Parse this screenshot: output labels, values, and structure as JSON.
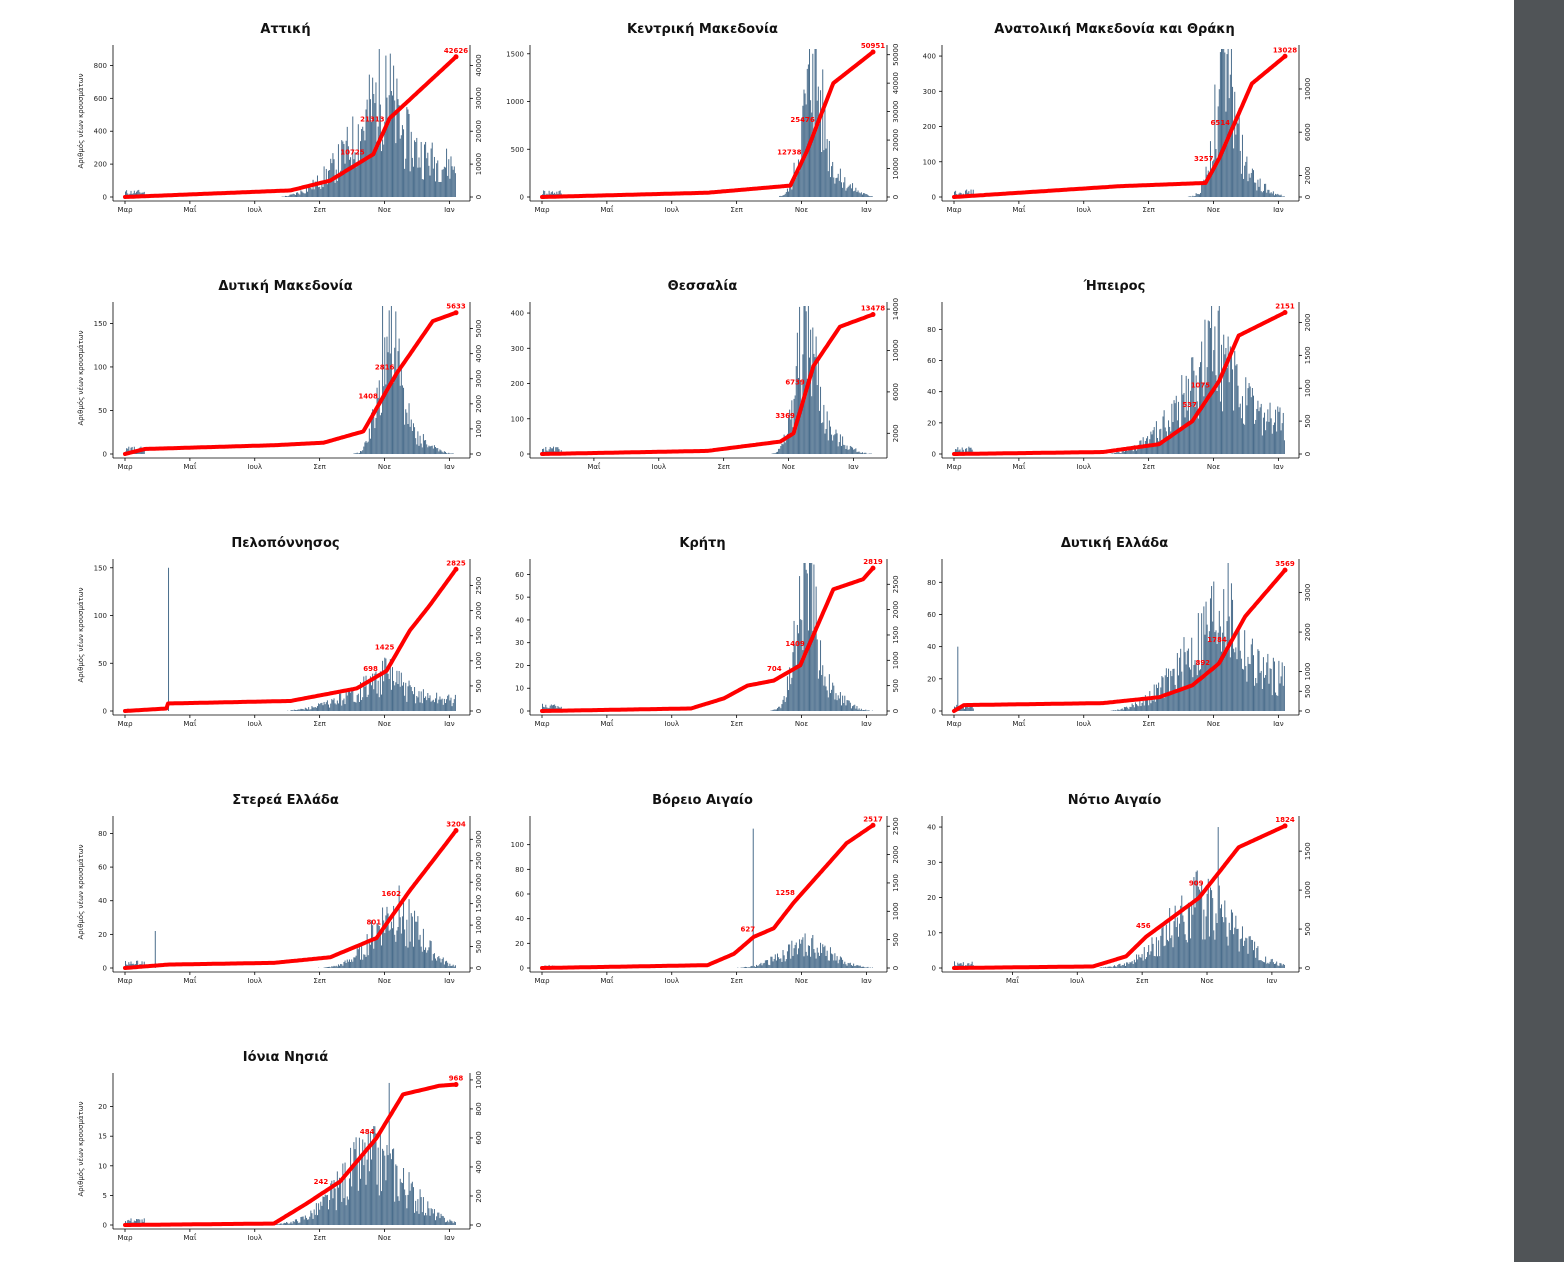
{
  "colors": {
    "bars": "#4a6d8c",
    "line": "#ff0000",
    "axis": "#000000",
    "sidebar": "#505457"
  },
  "ylabel": "Αριθμός νέων κρουσμάτων",
  "chart_data": [
    {
      "type": "bar+line",
      "title": "Αττική",
      "months": [
        "Μαρ",
        "Μαΐ",
        "Ιουλ",
        "Σεπ",
        "Νοε",
        "Ιαν"
      ],
      "month_pos": [
        0,
        0.2,
        0.4,
        0.6,
        0.8,
        1.0
      ],
      "yticks_left": [
        "0",
        "200",
        "400",
        "600",
        "800"
      ],
      "ylim_left": [
        0,
        900
      ],
      "yticks_right": [
        "0",
        "10000",
        "20000",
        "30000",
        "40000"
      ],
      "ylim_right": [
        0,
        45000
      ],
      "bar_max": 860,
      "peak_pos": 0.79,
      "shape": "fall",
      "spike": null,
      "cum_breaks": [
        [
          0,
          0
        ],
        [
          0.5,
          2000
        ],
        [
          0.62,
          5000
        ],
        [
          0.75,
          13000
        ],
        [
          0.8,
          24000
        ],
        [
          1,
          42626
        ]
      ],
      "labels": [
        {
          "text": "10725",
          "pos": 0.73
        },
        {
          "text": "21313",
          "pos": 0.79
        },
        {
          "text": "42626",
          "pos": 1
        }
      ],
      "show_ylabel": true
    },
    {
      "type": "bar+line",
      "title": "Κεντρική Μακεδονία",
      "months": [
        "Μαρ",
        "Μαΐ",
        "Ιουλ",
        "Σεπ",
        "Νοε",
        "Ιαν"
      ],
      "month_pos": [
        0,
        0.2,
        0.4,
        0.6,
        0.8,
        1.0
      ],
      "yticks_left": [
        "0",
        "500",
        "1000",
        "1500"
      ],
      "ylim_left": [
        0,
        1550
      ],
      "yticks_right": [
        "0",
        "10000",
        "20000",
        "30000",
        "40000",
        "50000"
      ],
      "ylim_right": [
        0,
        52000
      ],
      "bar_max": 1500,
      "peak_pos": 0.82,
      "shape": "peak",
      "spike": null,
      "cum_breaks": [
        [
          0,
          0
        ],
        [
          0.5,
          1500
        ],
        [
          0.75,
          4000
        ],
        [
          0.8,
          16000
        ],
        [
          0.88,
          40000
        ],
        [
          1,
          50951
        ]
      ],
      "labels": [
        {
          "text": "12738",
          "pos": 0.79
        },
        {
          "text": "25476",
          "pos": 0.83
        },
        {
          "text": "50951",
          "pos": 1
        }
      ],
      "show_ylabel": false
    },
    {
      "type": "bar+line",
      "title": "Ανατολική Μακεδονία και Θράκη",
      "months": [
        "Μαρ",
        "Μαΐ",
        "Ιουλ",
        "Σεπ",
        "Νοε",
        "Ιαν"
      ],
      "month_pos": [
        0,
        0.2,
        0.4,
        0.6,
        0.8,
        1.0
      ],
      "yticks_left": [
        "0",
        "100",
        "200",
        "300",
        "400"
      ],
      "ylim_left": [
        0,
        420
      ],
      "yticks_right": [
        "0",
        "2000",
        "6000",
        "10000"
      ],
      "ylim_right": [
        0,
        13700
      ],
      "bar_max": 410,
      "peak_pos": 0.82,
      "shape": "peak",
      "spike": null,
      "cum_breaks": [
        [
          0,
          0
        ],
        [
          0.35,
          700
        ],
        [
          0.5,
          1000
        ],
        [
          0.76,
          1300
        ],
        [
          0.8,
          3500
        ],
        [
          0.9,
          10500
        ],
        [
          1,
          13028
        ]
      ],
      "labels": [
        {
          "text": "3257",
          "pos": 0.79
        },
        {
          "text": "6514",
          "pos": 0.84
        },
        {
          "text": "13028",
          "pos": 1
        }
      ],
      "show_ylabel": false
    },
    {
      "type": "bar+line",
      "title": "Δυτική Μακεδονία",
      "months": [
        "Μαρ",
        "Μαΐ",
        "Ιουλ",
        "Σεπ",
        "Νοε",
        "Ιαν"
      ],
      "month_pos": [
        0,
        0.2,
        0.4,
        0.6,
        0.8,
        1.0
      ],
      "yticks_left": [
        "0",
        "50",
        "100",
        "150"
      ],
      "ylim_left": [
        0,
        170
      ],
      "yticks_right": [
        "0",
        "1000",
        "2000",
        "3000",
        "4000",
        "5000"
      ],
      "ylim_right": [
        0,
        5900
      ],
      "bar_max": 165,
      "peak_pos": 0.8,
      "shape": "peak",
      "spike": null,
      "cum_breaks": [
        [
          0,
          0
        ],
        [
          0.06,
          200
        ],
        [
          0.45,
          350
        ],
        [
          0.6,
          450
        ],
        [
          0.72,
          900
        ],
        [
          0.82,
          3200
        ],
        [
          0.93,
          5300
        ],
        [
          1,
          5633
        ]
      ],
      "labels": [
        {
          "text": "1408",
          "pos": 0.77
        },
        {
          "text": "2816",
          "pos": 0.82
        },
        {
          "text": "5633",
          "pos": 1
        }
      ],
      "show_ylabel": true
    },
    {
      "type": "bar+line",
      "title": "Θεσσαλία",
      "months": [
        "Μαΐ",
        "Ιουλ",
        "Σεπ",
        "Νοε",
        "Ιαν"
      ],
      "month_pos": [
        0.16,
        0.36,
        0.56,
        0.76,
        0.96
      ],
      "yticks_left": [
        "0",
        "100",
        "200",
        "300",
        "400"
      ],
      "ylim_left": [
        0,
        420
      ],
      "yticks_right": [
        "2000",
        "6000",
        "10000",
        "14000"
      ],
      "ylim_right": [
        0,
        14300
      ],
      "bar_max": 405,
      "peak_pos": 0.8,
      "shape": "peak",
      "spike": null,
      "cum_breaks": [
        [
          0,
          0
        ],
        [
          0.5,
          300
        ],
        [
          0.72,
          1200
        ],
        [
          0.76,
          2000
        ],
        [
          0.82,
          8500
        ],
        [
          0.9,
          12300
        ],
        [
          1,
          13478
        ]
      ],
      "labels": [
        {
          "text": "3369",
          "pos": 0.77
        },
        {
          "text": "6739",
          "pos": 0.8
        },
        {
          "text": "13478",
          "pos": 1
        }
      ],
      "show_ylabel": false
    },
    {
      "type": "bar+line",
      "title": "Ήπειρος",
      "months": [
        "Μαρ",
        "Μαΐ",
        "Ιουλ",
        "Σεπ",
        "Νοε",
        "Ιαν"
      ],
      "month_pos": [
        0,
        0.2,
        0.4,
        0.6,
        0.8,
        1.0
      ],
      "yticks_left": [
        "0",
        "20",
        "40",
        "60",
        "80"
      ],
      "ylim_left": [
        0,
        95
      ],
      "yticks_right": [
        "0",
        "500",
        "1000",
        "1500",
        "2000"
      ],
      "ylim_right": [
        0,
        2250
      ],
      "bar_max": 92,
      "peak_pos": 0.8,
      "shape": "fall",
      "spike": null,
      "cum_breaks": [
        [
          0,
          0
        ],
        [
          0.45,
          30
        ],
        [
          0.62,
          150
        ],
        [
          0.72,
          500
        ],
        [
          0.8,
          1100
        ],
        [
          0.86,
          1800
        ],
        [
          1,
          2151
        ]
      ],
      "labels": [
        {
          "text": "537",
          "pos": 0.74
        },
        {
          "text": "1075",
          "pos": 0.78
        },
        {
          "text": "2151",
          "pos": 1
        }
      ],
      "show_ylabel": false
    },
    {
      "type": "bar+line",
      "title": "Πελοπόννησος",
      "months": [
        "Μαρ",
        "Μαΐ",
        "Ιουλ",
        "Σεπ",
        "Νοε",
        "Ιαν"
      ],
      "month_pos": [
        0,
        0.2,
        0.4,
        0.6,
        0.8,
        1.0
      ],
      "yticks_left": [
        "0",
        "50",
        "100",
        "150"
      ],
      "ylim_left": [
        0,
        155
      ],
      "yticks_right": [
        "0",
        "500",
        "1000",
        "1500",
        "2000",
        "2500"
      ],
      "ylim_right": [
        0,
        2950
      ],
      "bar_max": 50,
      "peak_pos": 0.8,
      "shape": "fall",
      "spike": [
        0.13,
        150
      ],
      "cum_breaks": [
        [
          0,
          0
        ],
        [
          0.125,
          50
        ],
        [
          0.13,
          150
        ],
        [
          0.5,
          200
        ],
        [
          0.7,
          450
        ],
        [
          0.79,
          800
        ],
        [
          0.86,
          1600
        ],
        [
          0.92,
          2100
        ],
        [
          1,
          2825
        ]
      ],
      "labels": [
        {
          "text": "698",
          "pos": 0.77
        },
        {
          "text": "1425",
          "pos": 0.82
        },
        {
          "text": "2825",
          "pos": 1
        }
      ],
      "show_ylabel": true
    },
    {
      "type": "bar+line",
      "title": "Κρήτη",
      "months": [
        "Μαρ",
        "Μαΐ",
        "Ιουλ",
        "Σεπ",
        "Νοε",
        "Ιαν"
      ],
      "month_pos": [
        0,
        0.2,
        0.4,
        0.6,
        0.8,
        1.0
      ],
      "yticks_left": [
        "0",
        "10",
        "20",
        "30",
        "40",
        "50",
        "60"
      ],
      "ylim_left": [
        0,
        65
      ],
      "yticks_right": [
        "0",
        "500",
        "1000",
        "1500",
        "2000",
        "2500"
      ],
      "ylim_right": [
        0,
        2920
      ],
      "bar_max": 62,
      "peak_pos": 0.8,
      "shape": "peak",
      "spike": null,
      "cum_breaks": [
        [
          0,
          0
        ],
        [
          0.45,
          50
        ],
        [
          0.55,
          250
        ],
        [
          0.62,
          500
        ],
        [
          0.7,
          600
        ],
        [
          0.78,
          900
        ],
        [
          0.88,
          2400
        ],
        [
          0.97,
          2600
        ],
        [
          1,
          2819
        ]
      ],
      "labels": [
        {
          "text": "704",
          "pos": 0.73
        },
        {
          "text": "1409",
          "pos": 0.8
        },
        {
          "text": "2819",
          "pos": 1
        }
      ],
      "show_ylabel": false
    },
    {
      "type": "bar+line",
      "title": "Δυτική Ελλάδα",
      "months": [
        "Μαρ",
        "Μαΐ",
        "Ιουλ",
        "Σεπ",
        "Νοε",
        "Ιαν"
      ],
      "month_pos": [
        0,
        0.2,
        0.4,
        0.6,
        0.8,
        1.0
      ],
      "yticks_left": [
        "0",
        "20",
        "40",
        "60",
        "80"
      ],
      "ylim_left": [
        0,
        92
      ],
      "yticks_right": [
        "0",
        "500",
        "1000",
        "2000",
        "3000"
      ],
      "ylim_right": [
        0,
        3750
      ],
      "bar_max": 88,
      "peak_pos": 0.82,
      "shape": "fall",
      "spike": [
        0.01,
        40
      ],
      "cum_breaks": [
        [
          0,
          0
        ],
        [
          0.03,
          150
        ],
        [
          0.45,
          200
        ],
        [
          0.62,
          350
        ],
        [
          0.72,
          650
        ],
        [
          0.8,
          1200
        ],
        [
          0.88,
          2400
        ],
        [
          1,
          3569
        ]
      ],
      "labels": [
        {
          "text": "892",
          "pos": 0.78
        },
        {
          "text": "1784",
          "pos": 0.83
        },
        {
          "text": "3569",
          "pos": 1
        }
      ],
      "show_ylabel": false
    },
    {
      "type": "bar+line",
      "title": "Στερεά Ελλάδα",
      "months": [
        "Μαρ",
        "Μαΐ",
        "Ιουλ",
        "Σεπ",
        "Νοε",
        "Ιαν"
      ],
      "month_pos": [
        0,
        0.2,
        0.4,
        0.6,
        0.8,
        1.0
      ],
      "yticks_left": [
        "0",
        "20",
        "40",
        "60",
        "80"
      ],
      "ylim_left": [
        0,
        88
      ],
      "yticks_right": [
        "0",
        "500",
        "1000",
        "1500",
        "2000",
        "2500",
        "3000"
      ],
      "ylim_right": [
        0,
        3450
      ],
      "bar_max": 85,
      "peak_pos": 0.8,
      "shape": "flat",
      "spike": [
        0.09,
        22
      ],
      "cum_breaks": [
        [
          0,
          0
        ],
        [
          0.13,
          80
        ],
        [
          0.45,
          120
        ],
        [
          0.62,
          250
        ],
        [
          0.76,
          700
        ],
        [
          0.86,
          1800
        ],
        [
          0.96,
          2800
        ],
        [
          1,
          3204
        ]
      ],
      "labels": [
        {
          "text": "801",
          "pos": 0.78
        },
        {
          "text": "1602",
          "pos": 0.84
        },
        {
          "text": "3204",
          "pos": 1
        }
      ],
      "show_ylabel": true
    },
    {
      "type": "bar+line",
      "title": "Βόρειο Αιγαίο",
      "months": [
        "Μαρ",
        "Μαΐ",
        "Ιουλ",
        "Σεπ",
        "Νοε",
        "Ιαν"
      ],
      "month_pos": [
        0,
        0.2,
        0.4,
        0.6,
        0.8,
        1.0
      ],
      "yticks_left": [
        "0",
        "20",
        "40",
        "60",
        "80",
        "100"
      ],
      "ylim_left": [
        0,
        120
      ],
      "yticks_right": [
        "0",
        "500",
        "1000",
        "1500",
        "2000",
        "2500"
      ],
      "ylim_right": [
        0,
        2610
      ],
      "bar_max": 50,
      "peak_pos": 0.78,
      "shape": "flat",
      "spike": [
        0.64,
        113
      ],
      "cum_breaks": [
        [
          0,
          0
        ],
        [
          0.5,
          50
        ],
        [
          0.58,
          250
        ],
        [
          0.64,
          550
        ],
        [
          0.7,
          700
        ],
        [
          0.76,
          1150
        ],
        [
          0.92,
          2200
        ],
        [
          1,
          2517
        ]
      ],
      "labels": [
        {
          "text": "627",
          "pos": 0.65
        },
        {
          "text": "1258",
          "pos": 0.77
        },
        {
          "text": "2517",
          "pos": 1
        }
      ],
      "show_ylabel": false
    },
    {
      "type": "bar+line",
      "title": "Νότιο Αιγαίο",
      "months": [
        "Μαΐ",
        "Ιουλ",
        "Σεπ",
        "Νοε",
        "Ιαν"
      ],
      "month_pos": [
        0.18,
        0.38,
        0.58,
        0.78,
        0.98
      ],
      "yticks_left": [
        "0",
        "10",
        "20",
        "30",
        "40"
      ],
      "ylim_left": [
        0,
        42
      ],
      "yticks_right": [
        "0",
        "500",
        "1000",
        "1500"
      ],
      "ylim_right": [
        0,
        1900
      ],
      "bar_max": 40,
      "peak_pos": 0.8,
      "shape": "wide",
      "spike": null,
      "cum_breaks": [
        [
          0,
          0
        ],
        [
          0.42,
          20
        ],
        [
          0.52,
          150
        ],
        [
          0.58,
          400
        ],
        [
          0.74,
          900
        ],
        [
          0.86,
          1550
        ],
        [
          1,
          1824
        ]
      ],
      "labels": [
        {
          "text": "456",
          "pos": 0.6
        },
        {
          "text": "909",
          "pos": 0.76
        },
        {
          "text": "1824",
          "pos": 1
        }
      ],
      "show_ylabel": false
    },
    {
      "type": "bar+line",
      "title": "Ιόνια Νησιά",
      "months": [
        "Μαρ",
        "Μαΐ",
        "Ιουλ",
        "Σεπ",
        "Νοε",
        "Ιαν"
      ],
      "month_pos": [
        0,
        0.2,
        0.4,
        0.6,
        0.8,
        1.0
      ],
      "yticks_left": [
        "0",
        "5",
        "10",
        "15",
        "20"
      ],
      "ylim_left": [
        0,
        25
      ],
      "yticks_right": [
        "0",
        "200",
        "400",
        "600",
        "800",
        "1000"
      ],
      "ylim_right": [
        0,
        1020
      ],
      "bar_max": 24,
      "peak_pos": 0.8,
      "shape": "wide",
      "spike": null,
      "cum_breaks": [
        [
          0,
          0
        ],
        [
          0.45,
          10
        ],
        [
          0.55,
          150
        ],
        [
          0.65,
          300
        ],
        [
          0.76,
          600
        ],
        [
          0.84,
          900
        ],
        [
          0.95,
          960
        ],
        [
          1,
          968
        ]
      ],
      "labels": [
        {
          "text": "242",
          "pos": 0.62
        },
        {
          "text": "484",
          "pos": 0.76
        },
        {
          "text": "968",
          "pos": 1
        }
      ],
      "show_ylabel": true
    }
  ]
}
